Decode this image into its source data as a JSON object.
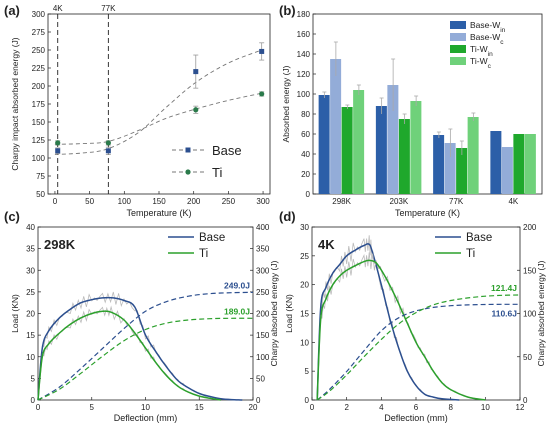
{
  "colors": {
    "base": "#2c4f8f",
    "base_light": "#8fa8d4",
    "ti": "#2ca02c",
    "ti_light": "#66cc66",
    "grid": "#888888"
  },
  "chart_data": [
    {
      "panel": "(a)",
      "type": "scatter",
      "xlabel": "Temperature (K)",
      "ylabel": "Charpy impact absorbed energy (J)",
      "xlim": [
        -10,
        310
      ],
      "ylim": [
        50,
        300
      ],
      "xticks": [
        0,
        50,
        100,
        150,
        200,
        250,
        300
      ],
      "yticks": [
        50,
        75,
        100,
        125,
        150,
        175,
        200,
        225,
        250,
        275,
        300
      ],
      "vlines": [
        {
          "x": 4,
          "label": "4K"
        },
        {
          "x": 77,
          "label": "77K"
        }
      ],
      "series": [
        {
          "name": "Base",
          "color": "#2c4f8f",
          "marker": "square",
          "x": [
            4,
            77,
            203,
            298
          ],
          "y": [
            110,
            110,
            220,
            248
          ],
          "err": [
            4,
            5,
            23,
            12
          ],
          "fit_x": [
            0,
            40,
            77,
            120,
            160,
            203,
            250,
            298
          ],
          "fit_y": [
            105,
            107,
            113,
            135,
            170,
            205,
            232,
            250
          ]
        },
        {
          "name": "Ti",
          "color": "#2a7a4a",
          "marker": "circle",
          "x": [
            4,
            77,
            203,
            298
          ],
          "y": [
            121,
            121,
            167,
            189
          ],
          "err": [
            3,
            3,
            5,
            3
          ],
          "fit_x": [
            0,
            40,
            77,
            120,
            160,
            203,
            250,
            298
          ],
          "fit_y": [
            119,
            120,
            123,
            138,
            155,
            168,
            180,
            190
          ]
        }
      ]
    },
    {
      "panel": "(b)",
      "type": "bar",
      "xlabel": "Temperature (K)",
      "ylabel": "Absorbed energy (J)",
      "ylim": [
        0,
        180
      ],
      "yticks": [
        0,
        20,
        40,
        60,
        80,
        100,
        120,
        140,
        160,
        180
      ],
      "categories": [
        "298K",
        "203K",
        "77K",
        "4K"
      ],
      "series": [
        {
          "name": "Base-W",
          "sub": "in",
          "color": "#2c5fa8",
          "values": [
            99,
            88,
            59,
            63
          ],
          "err": [
            3,
            8,
            3,
            0
          ]
        },
        {
          "name": "Base-W",
          "sub": "c",
          "color": "#93acd8",
          "values": [
            135,
            109,
            51,
            47
          ],
          "err": [
            17,
            26,
            14,
            0
          ]
        },
        {
          "name": "Ti-W",
          "sub": "in",
          "color": "#1fa82c",
          "values": [
            87,
            75,
            46,
            60
          ],
          "err": [
            2,
            5,
            7,
            0
          ]
        },
        {
          "name": "Ti-W",
          "sub": "c",
          "color": "#6fd17a",
          "values": [
            104,
            93,
            77,
            60
          ],
          "err": [
            5,
            5,
            4,
            0
          ]
        }
      ]
    },
    {
      "panel": "(c)",
      "type": "line",
      "annotation": "298K",
      "xlabel": "Deflection (mm)",
      "ylabel": "Load (KN)",
      "y2label": "Charpy absorbed energy (J)",
      "xlim": [
        0,
        20
      ],
      "ylim": [
        0,
        40
      ],
      "y2lim": [
        0,
        400
      ],
      "xticks": [
        0,
        5,
        10,
        15,
        20
      ],
      "yticks": [
        0,
        5,
        10,
        15,
        20,
        25,
        30,
        35,
        40
      ],
      "y2ticks": [
        0,
        50,
        100,
        150,
        200,
        250,
        300,
        350,
        400
      ],
      "energy_labels": [
        {
          "text": "249.0J",
          "series": "Base",
          "value": 249
        },
        {
          "text": "189.0J",
          "series": "Ti",
          "value": 189
        }
      ],
      "series": [
        {
          "name": "Base",
          "color": "#2c4f8f",
          "x": [
            0,
            0.4,
            1,
            2,
            3,
            4,
            5,
            6,
            7,
            8,
            9,
            10,
            11,
            12,
            13,
            14,
            15,
            16,
            17,
            18,
            19
          ],
          "y": [
            0,
            12,
            16,
            19,
            21,
            22.5,
            23.2,
            23.6,
            23.6,
            23,
            21.5,
            15,
            11,
            7.5,
            4.5,
            2.8,
            1.5,
            0.8,
            0.3,
            0.1,
            0
          ]
        },
        {
          "name": "Ti",
          "color": "#2ca02c",
          "x": [
            0,
            0.4,
            1,
            2,
            3,
            4,
            5,
            6,
            6.8,
            8,
            9,
            10,
            11,
            12,
            13,
            14,
            15,
            16,
            17
          ],
          "y": [
            0,
            10,
            13,
            15.5,
            17.5,
            19,
            20,
            20.5,
            20.3,
            18.5,
            15.5,
            12,
            8.5,
            5.5,
            3.2,
            1.8,
            0.9,
            0.4,
            0
          ]
        },
        {
          "name": "Base energy",
          "color": "#2c4f8f",
          "dashed": true,
          "y2": true,
          "x": [
            0,
            2,
            4,
            6,
            8,
            10,
            12,
            14,
            16,
            18,
            20
          ],
          "y": [
            0,
            30,
            73,
            119,
            165,
            205,
            228,
            240,
            246,
            248,
            249
          ]
        },
        {
          "name": "Ti energy",
          "color": "#2ca02c",
          "dashed": true,
          "y2": true,
          "x": [
            0,
            2,
            4,
            6,
            8,
            10,
            12,
            14,
            16,
            18,
            20
          ],
          "y": [
            0,
            25,
            62,
            101,
            137,
            163,
            178,
            185,
            188,
            189,
            189
          ]
        }
      ]
    },
    {
      "panel": "(d)",
      "type": "line",
      "annotation": "4K",
      "xlabel": "Deflection (mm)",
      "ylabel": "Load (KN)",
      "y2label": "Charpy absorbed energy (J)",
      "xlim": [
        0,
        12
      ],
      "ylim": [
        0,
        30
      ],
      "y2lim": [
        0,
        200
      ],
      "xticks": [
        0,
        2,
        4,
        6,
        8,
        10,
        12
      ],
      "yticks": [
        0,
        5,
        10,
        15,
        20,
        25,
        30
      ],
      "y2ticks": [
        0,
        50,
        100,
        150,
        200
      ],
      "energy_labels": [
        {
          "text": "121.4J",
          "series": "Ti",
          "value": 121.4
        },
        {
          "text": "110.6J",
          "series": "Base",
          "value": 110.6
        }
      ],
      "series": [
        {
          "name": "Base",
          "color": "#2c4f8f",
          "x": [
            0.3,
            0.5,
            0.8,
            1.2,
            1.6,
            2,
            2.5,
            3,
            3.3,
            3.5,
            4,
            4.5,
            5,
            5.5,
            6,
            6.5,
            7,
            7.5,
            8,
            8.5
          ],
          "y": [
            0,
            16,
            19.5,
            22,
            23.5,
            25,
            26,
            26.8,
            27,
            25.5,
            20,
            14,
            9,
            5,
            2.5,
            1,
            0.5,
            0.2,
            0.1,
            0
          ]
        },
        {
          "name": "Ti",
          "color": "#2ca02c",
          "x": [
            0.3,
            0.5,
            0.8,
            1.2,
            1.6,
            2,
            2.5,
            3,
            3.3,
            3.7,
            4.2,
            4.8,
            5.4,
            6,
            6.5,
            7,
            7.5,
            8,
            9,
            10
          ],
          "y": [
            0,
            14,
            17.5,
            20,
            21.5,
            22.5,
            23.3,
            24,
            24.2,
            23.8,
            21.5,
            18,
            14,
            10,
            7.5,
            5,
            3,
            1.8,
            0.5,
            0
          ]
        },
        {
          "name": "Base energy",
          "color": "#2c4f8f",
          "dashed": true,
          "y2": true,
          "x": [
            0.3,
            1,
            2,
            3,
            4,
            5,
            6,
            7,
            8,
            9,
            10,
            11,
            12
          ],
          "y": [
            0,
            12,
            33,
            57,
            80,
            95,
            103,
            107,
            109,
            110,
            110.4,
            110.6,
            110.6
          ]
        },
        {
          "name": "Ti energy",
          "color": "#2ca02c",
          "dashed": true,
          "y2": true,
          "x": [
            0.3,
            1,
            2,
            3,
            4,
            5,
            6,
            7,
            8,
            9,
            10,
            11,
            12
          ],
          "y": [
            0,
            10,
            29,
            50,
            70,
            88,
            101,
            110,
            115,
            118,
            120,
            121,
            121.4
          ]
        }
      ]
    }
  ]
}
